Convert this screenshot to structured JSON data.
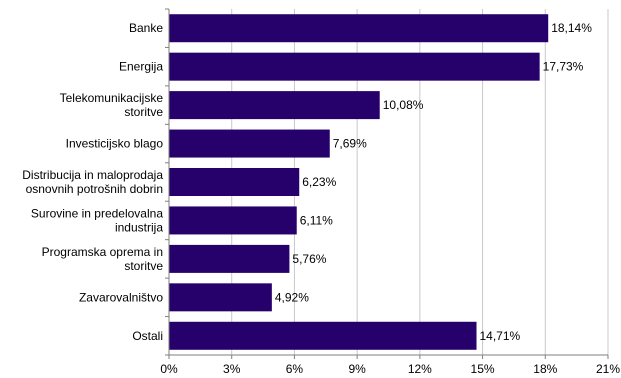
{
  "chart_data": {
    "type": "bar",
    "orientation": "horizontal",
    "categories": [
      [
        "Banke"
      ],
      [
        "Energija"
      ],
      [
        "Telekomunikacijske",
        "storitve"
      ],
      [
        "Investicijsko blago"
      ],
      [
        "Distribucija in maloprodaja",
        "osnovnih potrošnih dobrin"
      ],
      [
        "Surovine in predelovalna",
        "industrija"
      ],
      [
        "Programska oprema in",
        "storitve"
      ],
      [
        "Zavarovalništvo"
      ],
      [
        "Ostali"
      ]
    ],
    "values": [
      18.14,
      17.73,
      10.08,
      7.69,
      6.23,
      6.11,
      5.76,
      4.92,
      14.71
    ],
    "value_labels": [
      "18,14%",
      "17,73%",
      "10,08%",
      "7,69%",
      "6,23%",
      "6,11%",
      "5,76%",
      "4,92%",
      "14,71%"
    ],
    "x_ticks": [
      0,
      3,
      6,
      9,
      12,
      15,
      18,
      21
    ],
    "x_tick_labels": [
      "0%",
      "3%",
      "6%",
      "9%",
      "12%",
      "15%",
      "18%",
      "21%"
    ],
    "xlim": [
      0,
      21
    ],
    "grid": "vertical",
    "legend": "none",
    "bar_color": "#26006b",
    "grid_color": "#c8c8c8",
    "axis_color": "#7f7f7f"
  }
}
